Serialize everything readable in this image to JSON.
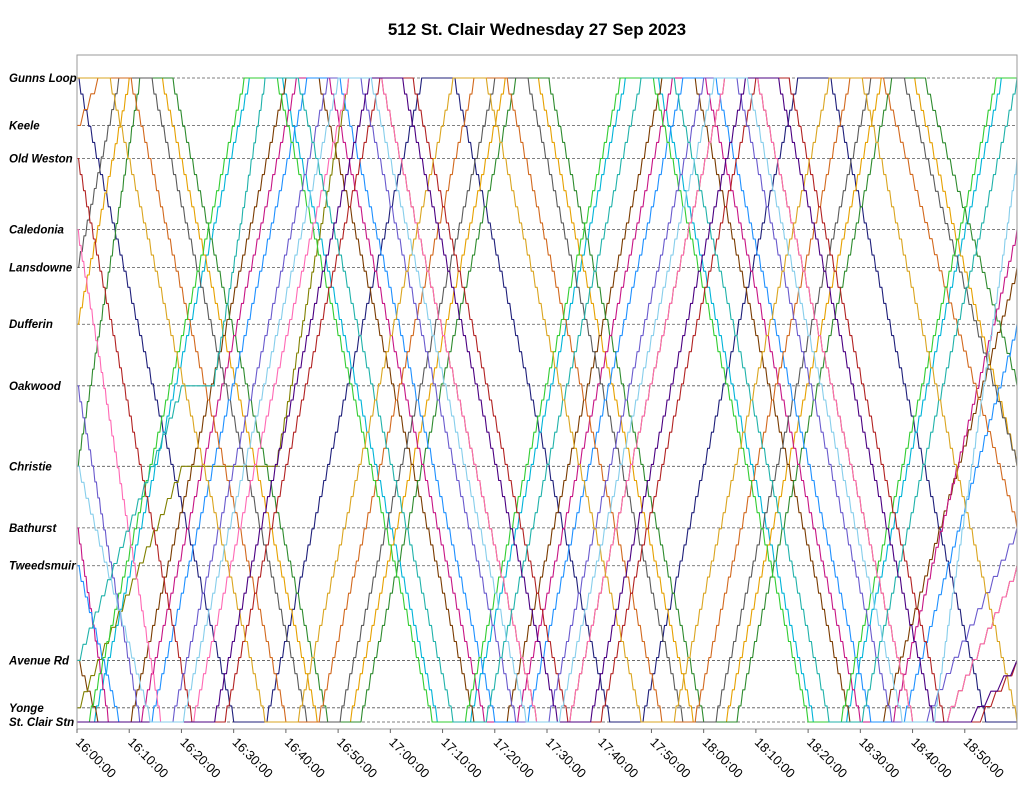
{
  "chart_data": {
    "type": "line",
    "title": "512 St. Clair Wednesday 27 Sep 2023",
    "xlabel": "",
    "ylabel": "",
    "x_axis": {
      "unit": "time of day",
      "range": [
        "16:00:00",
        "19:00:00"
      ],
      "tick_labels": [
        "16:00:00",
        "16:10:00",
        "16:20:00",
        "16:30:00",
        "16:40:00",
        "16:50:00",
        "17:00:00",
        "17:10:00",
        "17:20:00",
        "17:30:00",
        "17:40:00",
        "17:50:00",
        "18:00:00",
        "18:10:00",
        "18:20:00",
        "18:30:00",
        "18:40:00",
        "18:50:00"
      ]
    },
    "y_axis": {
      "type": "stops",
      "range": [
        "St. Clair Stn",
        "Gunns Loop"
      ],
      "stops": [
        {
          "name": "Gunns Loop",
          "distance_km": 6.8
        },
        {
          "name": "Keele",
          "distance_km": 6.3
        },
        {
          "name": "Old Weston",
          "distance_km": 5.95
        },
        {
          "name": "Caledonia",
          "distance_km": 5.2
        },
        {
          "name": "Lansdowne",
          "distance_km": 4.8
        },
        {
          "name": "Dufferin",
          "distance_km": 4.2
        },
        {
          "name": "Oakwood",
          "distance_km": 3.55
        },
        {
          "name": "Christie",
          "distance_km": 2.7
        },
        {
          "name": "Bathurst",
          "distance_km": 2.05
        },
        {
          "name": "Tweedsmuir",
          "distance_km": 1.65
        },
        {
          "name": "Avenue Rd",
          "distance_km": 0.65
        },
        {
          "name": "Yonge",
          "distance_km": 0.15
        },
        {
          "name": "St. Clair Stn",
          "distance_km": 0.0
        }
      ]
    },
    "grid": true,
    "legend": "none",
    "series_colors": [
      "#1f1f7a",
      "#00b4d8",
      "#e6a100",
      "#7a3b00",
      "#2e8b2e",
      "#c71585",
      "#808000",
      "#5a5a5a",
      "#1e90ff",
      "#d2691e",
      "#32cd32",
      "#b22222",
      "#6a5acd",
      "#ff69b4",
      "#20b2aa",
      "#daa520",
      "#4b0082",
      "#87ceeb"
    ],
    "series": [
      {
        "color": "#1f1f7a",
        "points": [
          [
            "16:00",
            "Gunns Loop"
          ],
          [
            "16:30",
            "St. Clair Stn"
          ],
          [
            "16:36",
            "St. Clair Stn"
          ],
          [
            "17:06",
            "Gunns Loop"
          ],
          [
            "17:12",
            "Gunns Loop"
          ],
          [
            "17:42",
            "St. Clair Stn"
          ],
          [
            "17:48",
            "St. Clair Stn"
          ],
          [
            "18:18",
            "Gunns Loop"
          ],
          [
            "18:24",
            "Gunns Loop"
          ],
          [
            "18:54",
            "St. Clair Stn"
          ],
          [
            "19:00",
            "St. Clair Stn"
          ]
        ]
      },
      {
        "color": "#00b4d8",
        "points": [
          [
            "16:03",
            "St. Clair Stn"
          ],
          [
            "16:33",
            "Gunns Loop"
          ],
          [
            "16:39",
            "Gunns Loop"
          ],
          [
            "17:09",
            "St. Clair Stn"
          ],
          [
            "17:15",
            "St. Clair Stn"
          ],
          [
            "17:45",
            "Gunns Loop"
          ],
          [
            "17:51",
            "Gunns Loop"
          ],
          [
            "18:21",
            "St. Clair Stn"
          ],
          [
            "18:27",
            "St. Clair Stn"
          ],
          [
            "18:57",
            "Gunns Loop"
          ],
          [
            "19:00",
            "Gunns Loop"
          ]
        ]
      },
      {
        "color": "#e6a100",
        "points": [
          [
            "16:00",
            "Dufferin"
          ],
          [
            "16:10",
            "Gunns Loop"
          ],
          [
            "16:16",
            "Gunns Loop"
          ],
          [
            "16:46",
            "St. Clair Stn"
          ],
          [
            "16:52",
            "St. Clair Stn"
          ],
          [
            "17:22",
            "Gunns Loop"
          ],
          [
            "17:28",
            "Gunns Loop"
          ],
          [
            "17:58",
            "St. Clair Stn"
          ],
          [
            "18:04",
            "St. Clair Stn"
          ],
          [
            "18:34",
            "Gunns Loop"
          ],
          [
            "18:40",
            "Gunns Loop"
          ],
          [
            "19:00",
            "Christie"
          ]
        ]
      },
      {
        "color": "#7a3b00",
        "points": [
          [
            "16:00",
            "Avenue Rd"
          ],
          [
            "16:04",
            "St. Clair Stn"
          ],
          [
            "16:10",
            "St. Clair Stn"
          ],
          [
            "16:40",
            "Gunns Loop"
          ],
          [
            "16:46",
            "Gunns Loop"
          ],
          [
            "17:16",
            "St. Clair Stn"
          ],
          [
            "17:22",
            "St. Clair Stn"
          ],
          [
            "17:52",
            "Gunns Loop"
          ],
          [
            "17:58",
            "Gunns Loop"
          ],
          [
            "18:28",
            "St. Clair Stn"
          ],
          [
            "18:34",
            "St. Clair Stn"
          ],
          [
            "19:00",
            "Lansdowne"
          ]
        ]
      },
      {
        "color": "#2e8b2e",
        "points": [
          [
            "16:00",
            "Christie"
          ],
          [
            "16:12",
            "Gunns Loop"
          ],
          [
            "16:18",
            "Gunns Loop"
          ],
          [
            "16:48",
            "St. Clair Stn"
          ],
          [
            "16:54",
            "St. Clair Stn"
          ],
          [
            "17:24",
            "Gunns Loop"
          ],
          [
            "17:30",
            "Gunns Loop"
          ],
          [
            "18:00",
            "St. Clair Stn"
          ],
          [
            "18:06",
            "St. Clair Stn"
          ],
          [
            "18:36",
            "Gunns Loop"
          ],
          [
            "18:42",
            "Gunns Loop"
          ],
          [
            "19:00",
            "Oakwood"
          ]
        ]
      },
      {
        "color": "#c71585",
        "points": [
          [
            "16:00",
            "Bathurst"
          ],
          [
            "16:06",
            "St. Clair Stn"
          ],
          [
            "16:12",
            "St. Clair Stn"
          ],
          [
            "16:42",
            "Gunns Loop"
          ],
          [
            "16:48",
            "Gunns Loop"
          ],
          [
            "17:18",
            "St. Clair Stn"
          ],
          [
            "17:24",
            "St. Clair Stn"
          ],
          [
            "17:54",
            "Gunns Loop"
          ],
          [
            "18:00",
            "Gunns Loop"
          ],
          [
            "18:30",
            "St. Clair Stn"
          ],
          [
            "18:36",
            "St. Clair Stn"
          ],
          [
            "19:00",
            "Caledonia"
          ]
        ]
      },
      {
        "color": "#808000",
        "points": [
          [
            "16:00",
            "Yonge"
          ],
          [
            "16:20",
            "Christie"
          ],
          [
            "16:38",
            "Christie"
          ],
          [
            "16:52",
            "Gunns Loop"
          ],
          [
            "16:58",
            "Gunns Loop"
          ],
          [
            "17:28",
            "St. Clair Stn"
          ],
          [
            "17:34",
            "St. Clair Stn"
          ],
          [
            "18:04",
            "Gunns Loop"
          ],
          [
            "18:10",
            "Gunns Loop"
          ],
          [
            "18:40",
            "St. Clair Stn"
          ],
          [
            "18:46",
            "St. Clair Stn"
          ],
          [
            "19:00",
            "Tweedsmuir"
          ]
        ]
      },
      {
        "color": "#5a5a5a",
        "points": [
          [
            "16:00",
            "Lansdowne"
          ],
          [
            "16:08",
            "Gunns Loop"
          ],
          [
            "16:14",
            "Gunns Loop"
          ],
          [
            "16:44",
            "St. Clair Stn"
          ],
          [
            "16:50",
            "St. Clair Stn"
          ],
          [
            "17:20",
            "Gunns Loop"
          ],
          [
            "17:26",
            "Gunns Loop"
          ],
          [
            "17:56",
            "St. Clair Stn"
          ],
          [
            "18:02",
            "St. Clair Stn"
          ],
          [
            "18:32",
            "Gunns Loop"
          ],
          [
            "18:38",
            "Gunns Loop"
          ],
          [
            "19:00",
            "Christie"
          ]
        ]
      },
      {
        "color": "#1e90ff",
        "points": [
          [
            "16:00",
            "Tweedsmuir"
          ],
          [
            "16:08",
            "St. Clair Stn"
          ],
          [
            "16:14",
            "St. Clair Stn"
          ],
          [
            "16:44",
            "Gunns Loop"
          ],
          [
            "16:50",
            "Gunns Loop"
          ],
          [
            "17:20",
            "St. Clair Stn"
          ],
          [
            "17:26",
            "St. Clair Stn"
          ],
          [
            "17:56",
            "Gunns Loop"
          ],
          [
            "18:02",
            "Gunns Loop"
          ],
          [
            "18:32",
            "St. Clair Stn"
          ],
          [
            "18:38",
            "St. Clair Stn"
          ],
          [
            "19:00",
            "Dufferin"
          ]
        ]
      },
      {
        "color": "#d2691e",
        "points": [
          [
            "16:00",
            "Keele"
          ],
          [
            "16:04",
            "Gunns Loop"
          ],
          [
            "16:10",
            "Gunns Loop"
          ],
          [
            "16:40",
            "St. Clair Stn"
          ],
          [
            "16:46",
            "St. Clair Stn"
          ],
          [
            "17:16",
            "Gunns Loop"
          ],
          [
            "17:22",
            "Gunns Loop"
          ],
          [
            "17:52",
            "St. Clair Stn"
          ],
          [
            "17:58",
            "St. Clair Stn"
          ],
          [
            "18:28",
            "Gunns Loop"
          ],
          [
            "18:34",
            "Gunns Loop"
          ],
          [
            "19:00",
            "Bathurst"
          ]
        ]
      },
      {
        "color": "#32cd32",
        "points": [
          [
            "16:00",
            "St. Clair Stn"
          ],
          [
            "16:02",
            "St. Clair Stn"
          ],
          [
            "16:32",
            "Gunns Loop"
          ],
          [
            "16:38",
            "Gunns Loop"
          ],
          [
            "17:08",
            "St. Clair Stn"
          ],
          [
            "17:14",
            "St. Clair Stn"
          ],
          [
            "17:44",
            "Gunns Loop"
          ],
          [
            "17:50",
            "Gunns Loop"
          ],
          [
            "18:20",
            "St. Clair Stn"
          ],
          [
            "18:26",
            "St. Clair Stn"
          ],
          [
            "18:56",
            "Gunns Loop"
          ],
          [
            "19:00",
            "Gunns Loop"
          ]
        ]
      },
      {
        "color": "#b22222",
        "points": [
          [
            "16:00",
            "Old Weston"
          ],
          [
            "16:22",
            "St. Clair Stn"
          ],
          [
            "16:28",
            "St. Clair Stn"
          ],
          [
            "16:58",
            "Gunns Loop"
          ],
          [
            "17:04",
            "Gunns Loop"
          ],
          [
            "17:34",
            "St. Clair Stn"
          ],
          [
            "17:40",
            "St. Clair Stn"
          ],
          [
            "18:10",
            "Gunns Loop"
          ],
          [
            "18:16",
            "Gunns Loop"
          ],
          [
            "18:46",
            "St. Clair Stn"
          ],
          [
            "18:52",
            "St. Clair Stn"
          ],
          [
            "19:00",
            "Avenue Rd"
          ]
        ]
      },
      {
        "color": "#6a5acd",
        "points": [
          [
            "16:00",
            "Oakwood"
          ],
          [
            "16:12",
            "St. Clair Stn"
          ],
          [
            "16:18",
            "St. Clair Stn"
          ],
          [
            "16:48",
            "Gunns Loop"
          ],
          [
            "16:54",
            "Gunns Loop"
          ],
          [
            "17:24",
            "St. Clair Stn"
          ],
          [
            "17:30",
            "St. Clair Stn"
          ],
          [
            "18:00",
            "Gunns Loop"
          ],
          [
            "18:06",
            "Gunns Loop"
          ],
          [
            "18:36",
            "St. Clair Stn"
          ],
          [
            "18:42",
            "St. Clair Stn"
          ],
          [
            "19:00",
            "Bathurst"
          ]
        ]
      },
      {
        "color": "#ff69b4",
        "points": [
          [
            "16:00",
            "Caledonia"
          ],
          [
            "16:16",
            "St. Clair Stn"
          ],
          [
            "16:22",
            "St. Clair Stn"
          ],
          [
            "16:52",
            "Gunns Loop"
          ],
          [
            "16:58",
            "Gunns Loop"
          ],
          [
            "17:28",
            "St. Clair Stn"
          ],
          [
            "17:34",
            "St. Clair Stn"
          ],
          [
            "18:04",
            "Gunns Loop"
          ],
          [
            "18:10",
            "Gunns Loop"
          ],
          [
            "18:40",
            "St. Clair Stn"
          ],
          [
            "18:46",
            "St. Clair Stn"
          ],
          [
            "19:00",
            "Tweedsmuir"
          ]
        ]
      },
      {
        "color": "#20b2aa",
        "points": [
          [
            "16:00",
            "Avenue Rd"
          ],
          [
            "16:20",
            "Oakwood"
          ],
          [
            "16:26",
            "Oakwood"
          ],
          [
            "16:36",
            "Gunns Loop"
          ],
          [
            "16:42",
            "Gunns Loop"
          ],
          [
            "17:12",
            "St. Clair Stn"
          ],
          [
            "17:18",
            "St. Clair Stn"
          ],
          [
            "17:48",
            "Gunns Loop"
          ],
          [
            "17:54",
            "Gunns Loop"
          ],
          [
            "18:24",
            "St. Clair Stn"
          ],
          [
            "18:30",
            "St. Clair Stn"
          ],
          [
            "19:00",
            "Gunns Loop"
          ]
        ]
      },
      {
        "color": "#daa520",
        "points": [
          [
            "16:00",
            "Gunns Loop"
          ],
          [
            "16:06",
            "Gunns Loop"
          ],
          [
            "16:36",
            "St. Clair Stn"
          ],
          [
            "16:42",
            "St. Clair Stn"
          ],
          [
            "17:12",
            "Gunns Loop"
          ],
          [
            "17:18",
            "Gunns Loop"
          ],
          [
            "17:48",
            "St. Clair Stn"
          ],
          [
            "17:54",
            "St. Clair Stn"
          ],
          [
            "18:24",
            "Gunns Loop"
          ],
          [
            "18:30",
            "Gunns Loop"
          ],
          [
            "19:00",
            "St. Clair Stn"
          ]
        ]
      },
      {
        "color": "#4b0082",
        "points": [
          [
            "16:00",
            "St. Clair Stn"
          ],
          [
            "16:26",
            "St. Clair Stn"
          ],
          [
            "16:56",
            "Gunns Loop"
          ],
          [
            "17:02",
            "Gunns Loop"
          ],
          [
            "17:32",
            "St. Clair Stn"
          ],
          [
            "17:38",
            "St. Clair Stn"
          ],
          [
            "18:08",
            "Gunns Loop"
          ],
          [
            "18:14",
            "Gunns Loop"
          ],
          [
            "18:44",
            "St. Clair Stn"
          ],
          [
            "18:50",
            "St. Clair Stn"
          ],
          [
            "19:00",
            "Avenue Rd"
          ]
        ]
      },
      {
        "color": "#87ceeb",
        "points": [
          [
            "16:00",
            "Christie"
          ],
          [
            "16:14",
            "St. Clair Stn"
          ],
          [
            "16:20",
            "St. Clair Stn"
          ],
          [
            "16:50",
            "Gunns Loop"
          ],
          [
            "16:56",
            "Gunns Loop"
          ],
          [
            "17:26",
            "St. Clair Stn"
          ],
          [
            "17:32",
            "St. Clair Stn"
          ],
          [
            "18:02",
            "Gunns Loop"
          ],
          [
            "18:08",
            "Gunns Loop"
          ],
          [
            "18:38",
            "St. Clair Stn"
          ],
          [
            "18:44",
            "St. Clair Stn"
          ],
          [
            "19:00",
            "Old Weston"
          ]
        ]
      }
    ]
  }
}
